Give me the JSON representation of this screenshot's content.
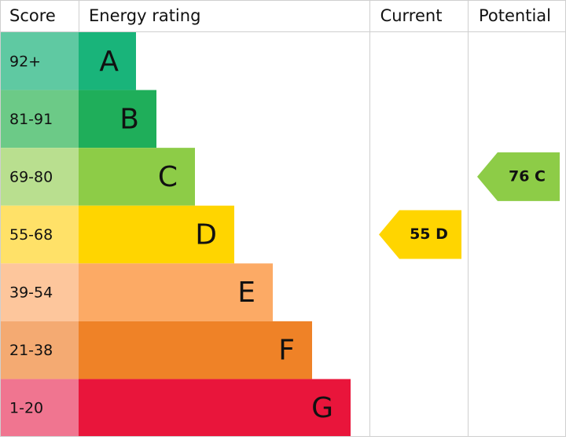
{
  "header": {
    "score": "Score",
    "rating": "Energy rating",
    "current": "Current",
    "potential": "Potential"
  },
  "bands": [
    {
      "score": "92+",
      "letter": "A",
      "color": "#19b47a",
      "score_color": "#5fc9a2"
    },
    {
      "score": "81-91",
      "letter": "B",
      "color": "#1fae5a",
      "score_color": "#6cca87"
    },
    {
      "score": "69-80",
      "letter": "C",
      "color": "#8dcc47",
      "score_color": "#b9df8f"
    },
    {
      "score": "55-68",
      "letter": "D",
      "color": "#ffd500",
      "score_color": "#ffe168"
    },
    {
      "score": "39-54",
      "letter": "E",
      "color": "#fcaa65",
      "score_color": "#fdc69c"
    },
    {
      "score": "21-38",
      "letter": "F",
      "color": "#ef8227",
      "score_color": "#f4aa72"
    },
    {
      "score": "1-20",
      "letter": "G",
      "color": "#e9153b",
      "score_color": "#f07590"
    }
  ],
  "current": "55 D",
  "potential": "76 C"
}
